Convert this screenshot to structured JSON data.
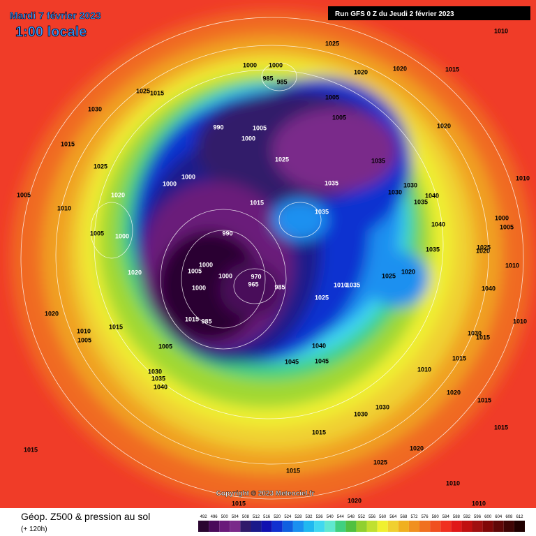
{
  "header": {
    "date": "Mardi 7 février 2023",
    "time": "1:00 locale",
    "run": "Run GFS 0 Z du Jeudi 2 février 2023"
  },
  "footer": {
    "title": "Géop. Z500 & pression au sol",
    "subtitle": "(+ 120h)",
    "copyright": "Copyright © 2023 Meteociel.fr"
  },
  "colorbar": {
    "labels": [
      492,
      496,
      500,
      504,
      508,
      512,
      516,
      520,
      524,
      528,
      532,
      536,
      540,
      544,
      548,
      552,
      556,
      560,
      564,
      568,
      572,
      576,
      580,
      584,
      588,
      592,
      596,
      600,
      604,
      608,
      612
    ],
    "colors": [
      "#2a0530",
      "#4a0a5a",
      "#6a1a7a",
      "#7a2a8a",
      "#301a6a",
      "#1a1a8a",
      "#1010b0",
      "#1030d0",
      "#1060e0",
      "#1a90f0",
      "#20b8f0",
      "#40d8f0",
      "#60e8d0",
      "#40d080",
      "#50c040",
      "#90d030",
      "#c0e030",
      "#f0f030",
      "#f0d030",
      "#f0b020",
      "#f09020",
      "#f07020",
      "#f05020",
      "#f03020",
      "#e01818",
      "#c01010",
      "#a01010",
      "#800808",
      "#600808",
      "#400505",
      "#200000"
    ]
  },
  "pressure_labels": [
    "1025",
    "1010",
    "1020",
    "1020",
    "1015",
    "1000",
    "1000",
    "985",
    "985",
    "1025",
    "1015",
    "1030",
    "1005",
    "1005",
    "990",
    "1005",
    "1000",
    "1020",
    "1015",
    "1025",
    "1025",
    "1035",
    "1000",
    "1000",
    "1035",
    "1030",
    "1030",
    "1040",
    "1035",
    "1020",
    "1005",
    "1010",
    "1015",
    "1035",
    "1040",
    "1000",
    "1005",
    "990",
    "1005",
    "1000",
    "1035",
    "1025",
    "1020",
    "1000",
    "1005",
    "1020",
    "1010",
    "1020",
    "1025",
    "1000",
    "970",
    "965",
    "985",
    "1000",
    "1035",
    "1010",
    "1040",
    "1025",
    "1015",
    "1020",
    "1010",
    "1010",
    "1005",
    "1030",
    "1015",
    "1040",
    "1045",
    "1045",
    "1005",
    "1010",
    "1015",
    "1030",
    "1035",
    "1040",
    "1020",
    "1030",
    "1030",
    "1015",
    "1015",
    "1025",
    "1020",
    "1015",
    "1015",
    "1015",
    "1010",
    "1020",
    "1010",
    "1015",
    "1015",
    "985",
    "1010"
  ]
}
